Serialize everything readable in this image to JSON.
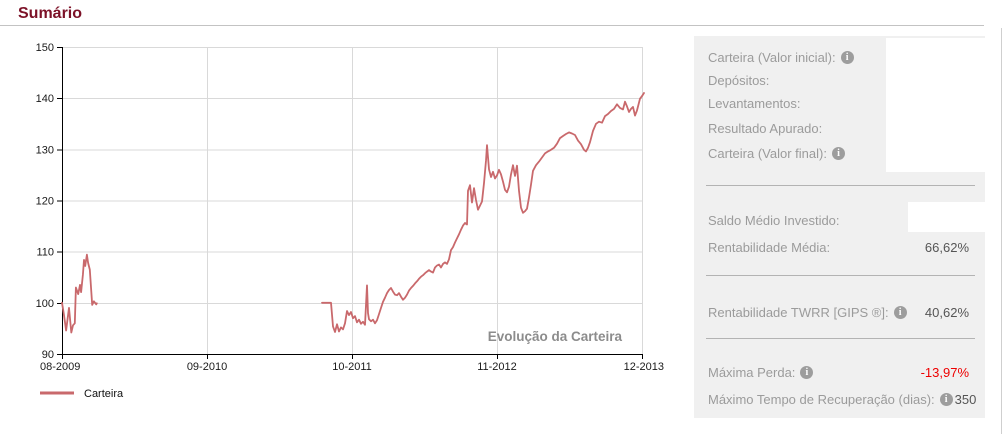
{
  "title": "Sumário",
  "panel": {
    "rows": [
      {
        "id": "carteira-valor-inicial",
        "label": "Carteira (Valor inicial):",
        "info": true,
        "value": ""
      },
      {
        "id": "depositos",
        "label": "Depósitos:",
        "info": false,
        "value": ""
      },
      {
        "id": "levantamentos",
        "label": "Levantamentos:",
        "info": false,
        "value": ""
      },
      {
        "id": "resultado-apurado",
        "label": "Resultado Apurado:",
        "info": false,
        "value": ""
      },
      {
        "id": "carteira-valor-final",
        "label": "Carteira (Valor final):",
        "info": true,
        "value": ""
      },
      {
        "id": "saldo-medio-investido",
        "label": "Saldo Médio Investido:",
        "info": false,
        "value": ""
      },
      {
        "id": "rentabilidade-media",
        "label": "Rentabilidade Média:",
        "info": false,
        "value": "66,62%"
      },
      {
        "id": "rentabilidade-twrr",
        "label": "Rentabilidade TWRR [GIPS ®]:",
        "info": true,
        "value": "40,62%"
      },
      {
        "id": "maxima-perda",
        "label": "Máxima Perda:",
        "info": true,
        "value": "-13,97%",
        "negative": true
      },
      {
        "id": "maximo-tempo-recuperacao",
        "label": "Máximo Tempo de Recuperação (dias):",
        "info": true,
        "value": "350"
      }
    ]
  },
  "icons": {
    "info_glyph": "i"
  },
  "colors": {
    "title": "#7c1127",
    "line": "#c9696c",
    "grid": "#d9d9d9",
    "axis": "#000000",
    "panel_bg": "#f0f0f0",
    "label_gray": "#9b9b9b",
    "value_gray": "#555555",
    "negative_red": "#ee0000",
    "chart_title_gray": "#8c8c8c"
  },
  "chart_data": {
    "type": "line",
    "title": "Evolução da Carteira",
    "series_name": "Carteira",
    "legend_position": "bottom-left",
    "grid": true,
    "x_ticks": [
      "08-2009",
      "09-2010",
      "10-2011",
      "11-2012",
      "12-2013"
    ],
    "y_ticks": [
      150,
      140,
      130,
      120,
      110,
      100,
      90
    ],
    "ylim": [
      90,
      150
    ],
    "note": "t is fractional position along time axis: 0 = 08-2009, 1 = 12-2013; series has a data gap between the two segments",
    "segments": [
      [
        [
          0.0,
          100.0
        ],
        [
          0.003,
          98.0
        ],
        [
          0.007,
          94.6
        ],
        [
          0.01,
          97.2
        ],
        [
          0.012,
          99.0
        ],
        [
          0.016,
          94.2
        ],
        [
          0.019,
          95.6
        ],
        [
          0.022,
          96.0
        ],
        [
          0.024,
          103.0
        ],
        [
          0.028,
          101.7
        ],
        [
          0.031,
          103.5
        ],
        [
          0.033,
          102.1
        ],
        [
          0.036,
          105.5
        ],
        [
          0.038,
          108.4
        ],
        [
          0.04,
          107.2
        ],
        [
          0.043,
          109.4
        ],
        [
          0.045,
          107.8
        ],
        [
          0.048,
          106.5
        ],
        [
          0.052,
          99.6
        ],
        [
          0.055,
          100.3
        ],
        [
          0.059,
          99.7
        ],
        [
          0.06,
          99.9
        ]
      ],
      [
        [
          0.4483,
          100.0
        ],
        [
          0.4638,
          100.0
        ],
        [
          0.4672,
          95.4
        ],
        [
          0.4707,
          94.3
        ],
        [
          0.4741,
          95.8
        ],
        [
          0.4776,
          94.4
        ],
        [
          0.481,
          95.2
        ],
        [
          0.4845,
          94.8
        ],
        [
          0.4879,
          96.0
        ],
        [
          0.4914,
          98.4
        ],
        [
          0.4948,
          97.6
        ],
        [
          0.4983,
          98.2
        ],
        [
          0.5017,
          97.0
        ],
        [
          0.5052,
          97.4
        ],
        [
          0.5086,
          96.2
        ],
        [
          0.5121,
          96.7
        ],
        [
          0.5155,
          95.9
        ],
        [
          0.519,
          96.3
        ],
        [
          0.5224,
          95.7
        ],
        [
          0.5259,
          103.4
        ],
        [
          0.5276,
          98.0
        ],
        [
          0.5293,
          96.8
        ],
        [
          0.5328,
          96.4
        ],
        [
          0.5362,
          96.7
        ],
        [
          0.5397,
          96.0
        ],
        [
          0.5431,
          96.6
        ],
        [
          0.5466,
          97.8
        ],
        [
          0.55,
          99.0
        ],
        [
          0.5534,
          100.2
        ],
        [
          0.5569,
          101.0
        ],
        [
          0.5603,
          101.9
        ],
        [
          0.5638,
          102.5
        ],
        [
          0.5672,
          102.9
        ],
        [
          0.5707,
          102.2
        ],
        [
          0.5741,
          101.6
        ],
        [
          0.5776,
          101.5
        ],
        [
          0.581,
          101.9
        ],
        [
          0.5845,
          101.2
        ],
        [
          0.5879,
          100.6
        ],
        [
          0.5914,
          101.0
        ],
        [
          0.5948,
          101.6
        ],
        [
          0.5983,
          102.4
        ],
        [
          0.6017,
          102.9
        ],
        [
          0.6052,
          103.3
        ],
        [
          0.6086,
          103.8
        ],
        [
          0.6121,
          104.2
        ],
        [
          0.6155,
          104.7
        ],
        [
          0.619,
          105.1
        ],
        [
          0.6224,
          105.4
        ],
        [
          0.6259,
          105.8
        ],
        [
          0.6293,
          106.1
        ],
        [
          0.6328,
          106.4
        ],
        [
          0.6362,
          106.1
        ],
        [
          0.6397,
          105.9
        ],
        [
          0.6431,
          106.9
        ],
        [
          0.6466,
          107.3
        ],
        [
          0.65,
          107.5
        ],
        [
          0.6534,
          106.9
        ],
        [
          0.6569,
          107.6
        ],
        [
          0.6603,
          107.9
        ],
        [
          0.6638,
          107.6
        ],
        [
          0.6672,
          108.5
        ],
        [
          0.6707,
          110.3
        ],
        [
          0.6741,
          110.9
        ],
        [
          0.6776,
          111.8
        ],
        [
          0.681,
          112.6
        ],
        [
          0.6845,
          113.4
        ],
        [
          0.6879,
          114.3
        ],
        [
          0.6914,
          115.1
        ],
        [
          0.6948,
          115.6
        ],
        [
          0.6983,
          115.3
        ],
        [
          0.7,
          121.9
        ],
        [
          0.7034,
          123.0
        ],
        [
          0.7069,
          119.6
        ],
        [
          0.7103,
          122.4
        ],
        [
          0.7138,
          120.1
        ],
        [
          0.7172,
          118.2
        ],
        [
          0.7207,
          119.0
        ],
        [
          0.7241,
          119.8
        ],
        [
          0.7276,
          123.4
        ],
        [
          0.731,
          127.8
        ],
        [
          0.7328,
          130.8
        ],
        [
          0.7362,
          126.1
        ],
        [
          0.7397,
          124.6
        ],
        [
          0.7431,
          125.6
        ],
        [
          0.7466,
          124.3
        ],
        [
          0.75,
          124.9
        ],
        [
          0.7534,
          126.0
        ],
        [
          0.7569,
          125.1
        ],
        [
          0.7603,
          123.7
        ],
        [
          0.7638,
          122.1
        ],
        [
          0.7672,
          121.6
        ],
        [
          0.7707,
          122.7
        ],
        [
          0.7741,
          125.1
        ],
        [
          0.7776,
          126.9
        ],
        [
          0.781,
          124.8
        ],
        [
          0.7845,
          126.8
        ],
        [
          0.7879,
          121.9
        ],
        [
          0.7914,
          118.6
        ],
        [
          0.7948,
          117.6
        ],
        [
          0.7983,
          117.9
        ],
        [
          0.8017,
          118.4
        ],
        [
          0.8052,
          120.6
        ],
        [
          0.8086,
          123.1
        ],
        [
          0.8121,
          125.8
        ],
        [
          0.8172,
          126.9
        ],
        [
          0.8224,
          127.6
        ],
        [
          0.8276,
          128.4
        ],
        [
          0.8328,
          129.2
        ],
        [
          0.8379,
          129.6
        ],
        [
          0.8431,
          129.9
        ],
        [
          0.8483,
          130.3
        ],
        [
          0.8534,
          131.1
        ],
        [
          0.8586,
          132.2
        ],
        [
          0.8638,
          132.6
        ],
        [
          0.869,
          133.0
        ],
        [
          0.8741,
          133.3
        ],
        [
          0.8793,
          133.1
        ],
        [
          0.8845,
          132.8
        ],
        [
          0.8897,
          131.7
        ],
        [
          0.8948,
          131.0
        ],
        [
          0.9,
          129.9
        ],
        [
          0.9034,
          129.6
        ],
        [
          0.9069,
          130.3
        ],
        [
          0.9103,
          131.4
        ],
        [
          0.9155,
          133.6
        ],
        [
          0.9207,
          135.0
        ],
        [
          0.9259,
          135.4
        ],
        [
          0.931,
          135.2
        ],
        [
          0.9362,
          136.5
        ],
        [
          0.9414,
          136.9
        ],
        [
          0.9466,
          137.5
        ],
        [
          0.9517,
          137.9
        ],
        [
          0.9569,
          138.8
        ],
        [
          0.9621,
          138.1
        ],
        [
          0.9672,
          137.8
        ],
        [
          0.9707,
          139.3
        ],
        [
          0.9741,
          138.4
        ],
        [
          0.9776,
          137.3
        ],
        [
          0.981,
          137.9
        ],
        [
          0.9845,
          138.3
        ],
        [
          0.9879,
          136.6
        ],
        [
          0.9914,
          137.6
        ],
        [
          0.9966,
          139.9
        ],
        [
          1.0,
          140.4
        ],
        [
          1.0034,
          141.0
        ]
      ]
    ]
  }
}
